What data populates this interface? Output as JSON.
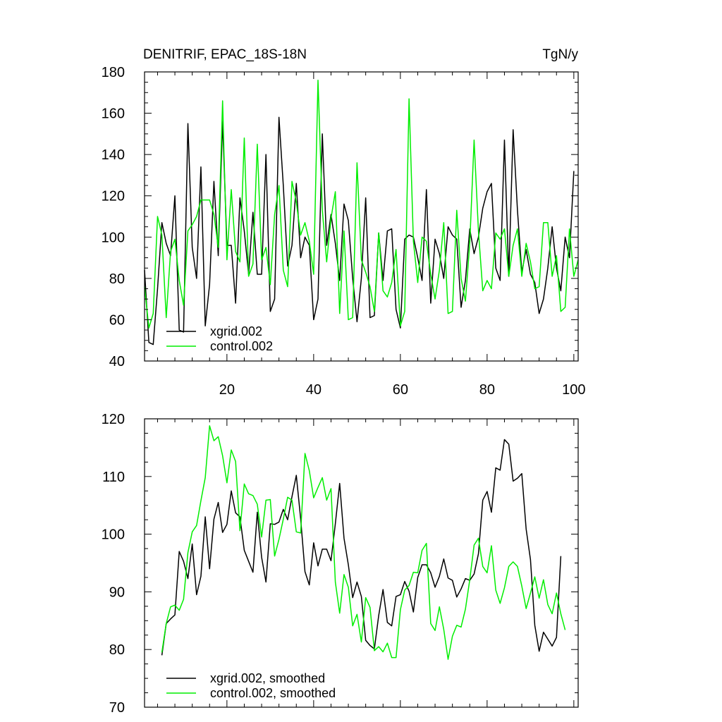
{
  "chart_data": [
    {
      "type": "line",
      "title_left": "DENITRIF, EPAC_18S-18N",
      "title_right": "TgN/y",
      "xlim": [
        1,
        101
      ],
      "ylim": [
        40,
        180
      ],
      "xticks": [
        20,
        40,
        60,
        80,
        100
      ],
      "xtick_labels": [
        "20",
        "40",
        "60",
        "80",
        "100"
      ],
      "yticks": [
        40,
        60,
        80,
        100,
        120,
        140,
        160,
        180
      ],
      "ytick_labels": [
        "40",
        "60",
        "80",
        "100",
        "120",
        "140",
        "160",
        "180"
      ],
      "legend_position": "bottom-left",
      "series": [
        {
          "name": "xgrid.002",
          "color": "#000000",
          "x_start": 1,
          "values": [
            84,
            49,
            48,
            75,
            107,
            97,
            91,
            120,
            55,
            54,
            155,
            95,
            80,
            134,
            57,
            77,
            127,
            91,
            156,
            96,
            96,
            68,
            119,
            103,
            82,
            112,
            82,
            82,
            140,
            64,
            70,
            158,
            125,
            86,
            96,
            126,
            90,
            100,
            96,
            60,
            70,
            150,
            96,
            111,
            97,
            79,
            116,
            108,
            80,
            59,
            80,
            119,
            61,
            62,
            102,
            79,
            103,
            104,
            65,
            56,
            99,
            101,
            100,
            90,
            79,
            123,
            68,
            99,
            92,
            80,
            105,
            101,
            99,
            66,
            79,
            104,
            92,
            100,
            114,
            122,
            126,
            85,
            79,
            147,
            81,
            152,
            113,
            83,
            94,
            82,
            78,
            63,
            70,
            85,
            105,
            85,
            74,
            100,
            90,
            132
          ]
        },
        {
          "name": "control.002",
          "color": "#00ee00",
          "x_start": 1,
          "values": [
            76,
            56,
            63,
            110,
            101,
            61,
            93,
            99,
            79,
            67,
            103,
            106,
            110,
            118,
            118,
            118,
            111,
            95,
            166,
            89,
            123,
            93,
            88,
            148,
            81,
            87,
            145,
            89,
            95,
            77,
            111,
            125,
            84,
            76,
            127,
            117,
            101,
            107,
            98,
            82,
            176,
            113,
            88,
            109,
            122,
            63,
            103,
            60,
            61,
            136,
            89,
            83,
            76,
            64,
            102,
            74,
            71,
            78,
            94,
            57,
            64,
            167,
            98,
            78,
            100,
            98,
            82,
            70,
            84,
            107,
            63,
            64,
            113,
            80,
            69,
            97,
            147,
            103,
            74,
            79,
            75,
            102,
            99,
            104,
            81,
            96,
            104,
            81,
            97,
            88,
            75,
            76,
            107,
            107,
            81,
            91,
            64,
            66,
            104,
            81,
            89
          ]
        }
      ]
    },
    {
      "type": "line",
      "xlim": [
        1,
        101
      ],
      "ylim": [
        70,
        120
      ],
      "xticks": [
        20,
        40,
        60,
        80,
        100
      ],
      "yticks": [
        70,
        80,
        90,
        100,
        110,
        120
      ],
      "ytick_labels": [
        "70",
        "80",
        "90",
        "100",
        "110",
        "120"
      ],
      "legend_position": "bottom-left",
      "series": [
        {
          "name": "xgrid.002, smoothed",
          "color": "#000000",
          "x_start": 5,
          "values": [
            79,
            84.5,
            85.3,
            86,
            97,
            95.3,
            92.3,
            98.3,
            89.5,
            92.7,
            103,
            94,
            102.6,
            105.5,
            100.3,
            101.7,
            107.5,
            103.7,
            103,
            97.2,
            95.3,
            93.4,
            103.8,
            96,
            91.7,
            101.8,
            101.7,
            102.1,
            104.3,
            102.5,
            106.5,
            110.2,
            102.7,
            93.5,
            91.2,
            98.5,
            94.5,
            97.4,
            97.4,
            95.4,
            101.8,
            108.8,
            99.3,
            94.7,
            89,
            91.7,
            89.2,
            81.6,
            80.7,
            80.1,
            85.9,
            90.4,
            84.7,
            84.1,
            89.2,
            89.5,
            91.8,
            90.1,
            86.5,
            92.5,
            94.7,
            94.7,
            93.3,
            90.8,
            92.7,
            95.7,
            92.4,
            92,
            89.1,
            90.5,
            92.3,
            92,
            93.1,
            96.6,
            105.9,
            107.4,
            103.8,
            111.5,
            111.1,
            116.4,
            115.6,
            109.2,
            109.7,
            110.5,
            100.9,
            95.6,
            84.2,
            79.7,
            83,
            81.8,
            80.6,
            82.1,
            96.2
          ]
        },
        {
          "name": "control.002, smoothed",
          "color": "#00ee00",
          "x_start": 5,
          "values": [
            79.5,
            84.5,
            87.4,
            87.7,
            86.8,
            88.7,
            96.8,
            100.4,
            101.5,
            105.8,
            109.8,
            118.8,
            116.2,
            116.9,
            113.6,
            108.9,
            114.6,
            112.6,
            100.6,
            108.7,
            107,
            106.7,
            105.2,
            99.5,
            105.9,
            106,
            96.2,
            99.1,
            102.6,
            106.4,
            105.9,
            100.4,
            100.2,
            114,
            111,
            106.3,
            108.1,
            109.8,
            105.9,
            107.9,
            91.7,
            86.3,
            93,
            90.8,
            84.1,
            86.1,
            81.3,
            89,
            87.3,
            79.8,
            80.5,
            79.6,
            81.1,
            78.6,
            78.6,
            86.9,
            90.3,
            91.1,
            93.4,
            93.3,
            97.2,
            98.4,
            84.5,
            83.3,
            87.4,
            83.5,
            78.3,
            82.3,
            84.2,
            83.9,
            87,
            92.1,
            98.1,
            99.3,
            94.4,
            93.3,
            98,
            90.3,
            88,
            90.7,
            94.4,
            95.2,
            94.4,
            91,
            87.1,
            89.8,
            92.6,
            88.9,
            92.1,
            87.8,
            86.2,
            89.8,
            86.2,
            83.4
          ]
        }
      ]
    }
  ]
}
